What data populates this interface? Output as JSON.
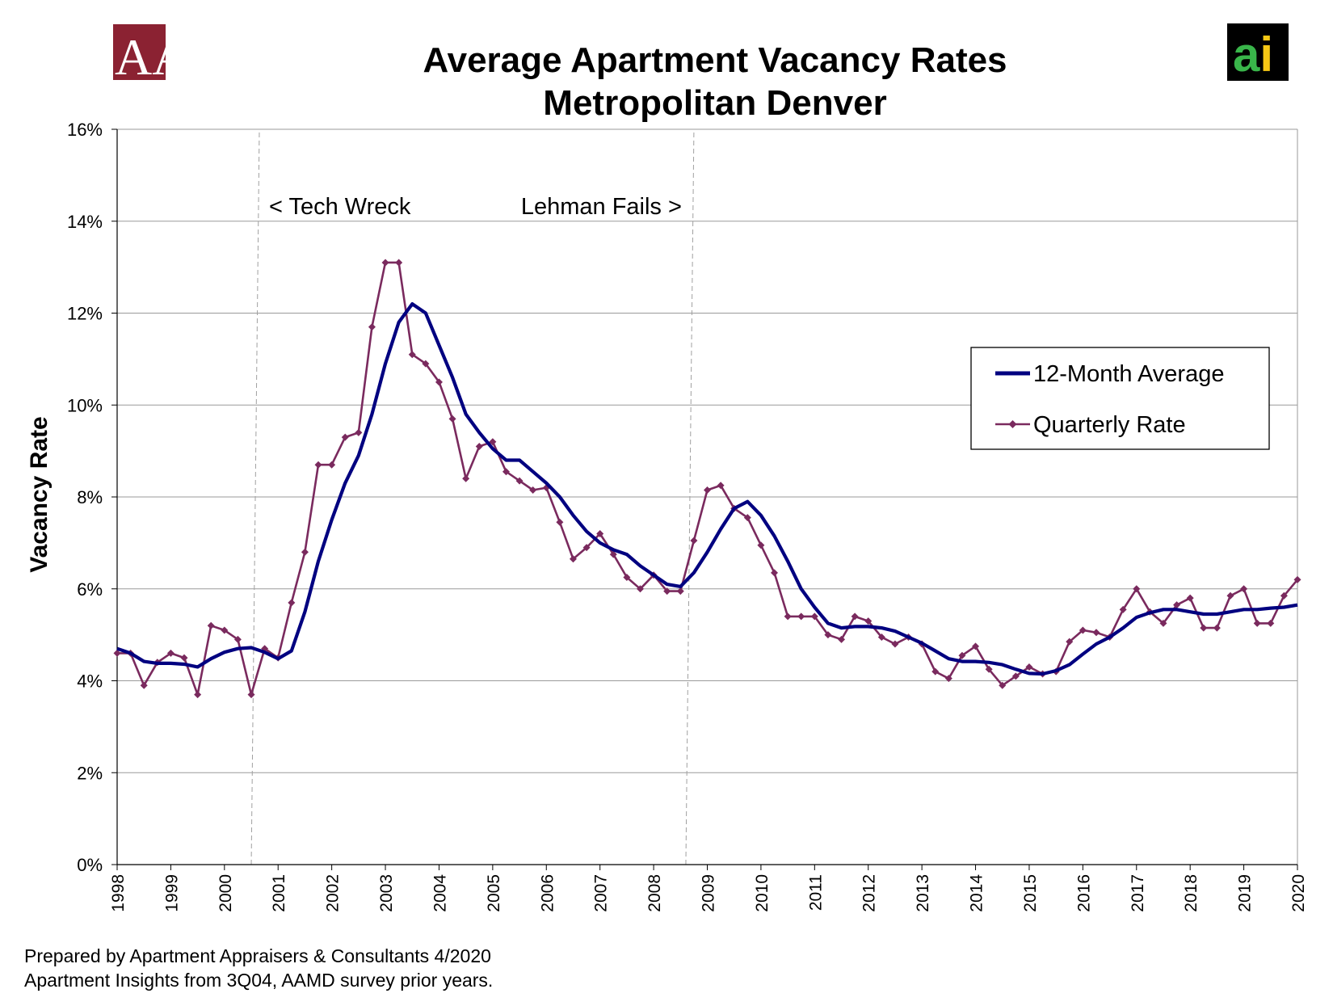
{
  "logos": {
    "left": {
      "letters": "AA&C",
      "block_color": "#8b2232"
    },
    "right": {
      "letters": "ai",
      "background": "#000000",
      "a_color": "#39b54a",
      "i_color": "#f7c815"
    }
  },
  "footer": {
    "line1": "Prepared by Apartment Appraisers & Consultants 4/2020",
    "line2": "Apartment Insights from 3Q04, AAMD survey prior years."
  },
  "colors": {
    "avg_line": "#000080",
    "quarterly_line": "#7a2a5e",
    "grid": "#9a9a9a",
    "event_line": "#a0a0a0"
  },
  "chart_data": {
    "type": "line",
    "title": "Average Apartment Vacancy Rates",
    "subtitle": "Metropolitan Denver",
    "xlabel": "",
    "ylabel": "Vacancy Rate",
    "xlim": [
      1998,
      2020
    ],
    "ylim": [
      0,
      16
    ],
    "x_ticks": [
      "1998",
      "1999",
      "2000",
      "2001",
      "2002",
      "2003",
      "2004",
      "2005",
      "2006",
      "2007",
      "2008",
      "2009",
      "2010",
      "2011",
      "2012",
      "2013",
      "2014",
      "2015",
      "2016",
      "2017",
      "2018",
      "2019",
      "2020"
    ],
    "y_ticks": [
      "0%",
      "2%",
      "4%",
      "6%",
      "8%",
      "10%",
      "12%",
      "14%",
      "16%"
    ],
    "grid": "horizontal",
    "legend_position": "right",
    "annotations": [
      {
        "text": "< Tech Wreck",
        "x": 2000.5
      },
      {
        "text": "Lehman Fails >",
        "x": 2008.6
      }
    ],
    "series": [
      {
        "name": "12-Month Average",
        "style": "line",
        "x": [
          1998.0,
          1998.25,
          1998.5,
          1998.75,
          1999.0,
          1999.25,
          1999.5,
          1999.75,
          2000.0,
          2000.25,
          2000.5,
          2000.75,
          2001.0,
          2001.25,
          2001.5,
          2001.75,
          2002.0,
          2002.25,
          2002.5,
          2002.75,
          2003.0,
          2003.25,
          2003.5,
          2003.75,
          2004.0,
          2004.25,
          2004.5,
          2004.75,
          2005.0,
          2005.25,
          2005.5,
          2005.75,
          2006.0,
          2006.25,
          2006.5,
          2006.75,
          2007.0,
          2007.25,
          2007.5,
          2007.75,
          2008.0,
          2008.25,
          2008.5,
          2008.75,
          2009.0,
          2009.25,
          2009.5,
          2009.75,
          2010.0,
          2010.25,
          2010.5,
          2010.75,
          2011.0,
          2011.25,
          2011.5,
          2011.75,
          2012.0,
          2012.25,
          2012.5,
          2012.75,
          2013.0,
          2013.25,
          2013.5,
          2013.75,
          2014.0,
          2014.25,
          2014.5,
          2014.75,
          2015.0,
          2015.25,
          2015.5,
          2015.75,
          2016.0,
          2016.25,
          2016.5,
          2016.75,
          2017.0,
          2017.25,
          2017.5,
          2017.75,
          2018.0,
          2018.25,
          2018.5,
          2018.75,
          2019.0,
          2019.25,
          2019.5,
          2019.75,
          2020.0
        ],
        "y": [
          4.7,
          4.6,
          4.42,
          4.38,
          4.38,
          4.36,
          4.3,
          4.48,
          4.62,
          4.7,
          4.72,
          4.62,
          4.48,
          4.65,
          5.5,
          6.6,
          7.5,
          8.3,
          8.9,
          9.8,
          10.9,
          11.8,
          12.2,
          12.0,
          11.3,
          10.6,
          9.8,
          9.4,
          9.05,
          8.8,
          8.8,
          8.55,
          8.3,
          8.0,
          7.6,
          7.25,
          7.0,
          6.85,
          6.75,
          6.5,
          6.3,
          6.1,
          6.05,
          6.35,
          6.8,
          7.3,
          7.75,
          7.9,
          7.6,
          7.15,
          6.6,
          6.0,
          5.6,
          5.25,
          5.15,
          5.18,
          5.18,
          5.15,
          5.08,
          4.95,
          4.82,
          4.65,
          4.48,
          4.42,
          4.42,
          4.4,
          4.35,
          4.25,
          4.16,
          4.15,
          4.22,
          4.35,
          4.58,
          4.8,
          4.95,
          5.15,
          5.38,
          5.48,
          5.55,
          5.55,
          5.5,
          5.45,
          5.45,
          5.5,
          5.55,
          5.55,
          5.58,
          5.6,
          5.65
        ]
      },
      {
        "name": "Quarterly Rate",
        "style": "line-markers",
        "x": [
          1998.0,
          1998.25,
          1998.5,
          1998.75,
          1999.0,
          1999.25,
          1999.5,
          1999.75,
          2000.0,
          2000.25,
          2000.5,
          2000.75,
          2001.0,
          2001.25,
          2001.5,
          2001.75,
          2002.0,
          2002.25,
          2002.5,
          2002.75,
          2003.0,
          2003.25,
          2003.5,
          2003.75,
          2004.0,
          2004.25,
          2004.5,
          2004.75,
          2005.0,
          2005.25,
          2005.5,
          2005.75,
          2006.0,
          2006.25,
          2006.5,
          2006.75,
          2007.0,
          2007.25,
          2007.5,
          2007.75,
          2008.0,
          2008.25,
          2008.5,
          2008.75,
          2009.0,
          2009.25,
          2009.5,
          2009.75,
          2010.0,
          2010.25,
          2010.5,
          2010.75,
          2011.0,
          2011.25,
          2011.5,
          2011.75,
          2012.0,
          2012.25,
          2012.5,
          2012.75,
          2013.0,
          2013.25,
          2013.5,
          2013.75,
          2014.0,
          2014.25,
          2014.5,
          2014.75,
          2015.0,
          2015.25,
          2015.5,
          2015.75,
          2016.0,
          2016.25,
          2016.5,
          2016.75,
          2017.0,
          2017.25,
          2017.5,
          2017.75,
          2018.0,
          2018.25,
          2018.5,
          2018.75,
          2019.0,
          2019.25,
          2019.5,
          2019.75,
          2020.0
        ],
        "y": [
          4.6,
          4.6,
          3.9,
          4.4,
          4.6,
          4.5,
          3.7,
          5.2,
          5.1,
          4.9,
          3.7,
          4.7,
          4.5,
          5.7,
          6.8,
          8.7,
          8.7,
          9.3,
          9.4,
          11.7,
          13.1,
          13.1,
          11.1,
          10.9,
          10.5,
          9.7,
          8.4,
          9.1,
          9.2,
          8.55,
          8.35,
          8.15,
          8.2,
          7.45,
          6.65,
          6.9,
          7.2,
          6.75,
          6.25,
          6.0,
          6.3,
          5.95,
          5.95,
          7.05,
          8.15,
          8.25,
          7.75,
          7.55,
          6.95,
          6.35,
          5.4,
          5.4,
          5.4,
          5.0,
          4.9,
          5.4,
          5.3,
          4.95,
          4.8,
          4.95,
          4.8,
          4.2,
          4.05,
          4.55,
          4.75,
          4.25,
          3.9,
          4.1,
          4.3,
          4.15,
          4.2,
          4.85,
          5.1,
          5.05,
          4.95,
          5.55,
          6.0,
          5.5,
          5.25,
          5.65,
          5.8,
          5.15,
          5.15,
          5.85,
          6.0,
          5.25,
          5.25,
          5.85,
          6.2
        ]
      }
    ]
  }
}
